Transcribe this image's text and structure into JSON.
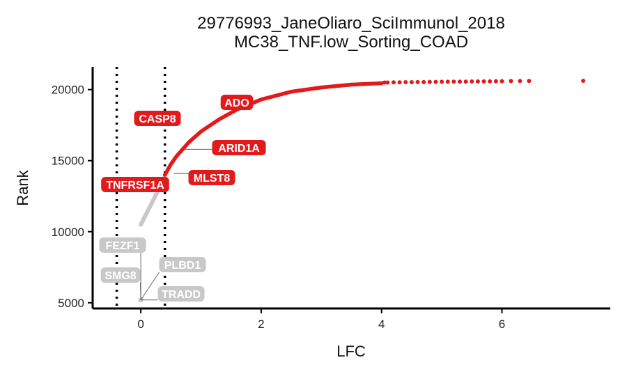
{
  "chart_data": {
    "type": "scatter",
    "title": "29776993_JaneOliaro_SciImmunol_2018",
    "subtitle": "MC38_TNF.low_Sorting_COAD",
    "xlabel": "LFC",
    "ylabel": "Rank",
    "xlim": [
      -0.8,
      7.8
    ],
    "ylim": [
      4600,
      21600
    ],
    "x_ticks": [
      0,
      2,
      4,
      6
    ],
    "y_ticks": [
      5000,
      10000,
      15000,
      20000
    ],
    "thresholds": [
      -0.4,
      0.4
    ],
    "grid": false,
    "legend": "none",
    "colors": {
      "significant": "#e31a1c",
      "not_significant": "#c8c8c8"
    },
    "grey_trend": [
      [
        0,
        10500
      ],
      [
        0.06,
        11000
      ],
      [
        0.12,
        11500
      ],
      [
        0.18,
        12000
      ],
      [
        0.24,
        12500
      ],
      [
        0.3,
        13000
      ],
      [
        0.36,
        13500
      ],
      [
        0.4,
        13900
      ]
    ],
    "red_curve": [
      [
        0.4,
        14000
      ],
      [
        0.5,
        14750
      ],
      [
        0.6,
        15350
      ],
      [
        0.8,
        16300
      ],
      [
        1.0,
        17050
      ],
      [
        1.3,
        17900
      ],
      [
        1.6,
        18600
      ],
      [
        2.0,
        19300
      ],
      [
        2.5,
        19850
      ],
      [
        3.0,
        20150
      ],
      [
        3.5,
        20350
      ],
      [
        4.0,
        20450
      ]
    ],
    "outliers": [
      [
        4.05,
        20500
      ],
      [
        4.1,
        20500
      ],
      [
        4.2,
        20510
      ],
      [
        4.3,
        20510
      ],
      [
        4.4,
        20520
      ],
      [
        4.5,
        20520
      ],
      [
        4.6,
        20530
      ],
      [
        4.7,
        20530
      ],
      [
        4.8,
        20540
      ],
      [
        4.9,
        20540
      ],
      [
        5.0,
        20550
      ],
      [
        5.1,
        20550
      ],
      [
        5.2,
        20560
      ],
      [
        5.3,
        20560
      ],
      [
        5.4,
        20560
      ],
      [
        5.5,
        20570
      ],
      [
        5.6,
        20570
      ],
      [
        5.7,
        20580
      ],
      [
        5.8,
        20580
      ],
      [
        5.9,
        20590
      ],
      [
        6.0,
        20590
      ],
      [
        6.15,
        20600
      ],
      [
        6.3,
        20600
      ],
      [
        6.45,
        20610
      ],
      [
        7.35,
        20620
      ]
    ],
    "low_point": [
      0.0,
      5200
    ],
    "labels": [
      {
        "text": "ADO",
        "x": 1.6,
        "y": 18600,
        "color": "red"
      },
      {
        "text": "CASP8",
        "x": 0.4,
        "y": 17000,
        "color": "red"
      },
      {
        "text": "ARID1A",
        "x": 0.7,
        "y": 15800,
        "color": "red"
      },
      {
        "text": "MLST8",
        "x": 0.55,
        "y": 14100,
        "color": "red"
      },
      {
        "text": "TNFRSF1A",
        "x": 0.45,
        "y": 14050,
        "color": "red"
      },
      {
        "text": "FEZF1",
        "x": 0.0,
        "y": 5200,
        "color": "grey"
      },
      {
        "text": "SMG8",
        "x": 0.0,
        "y": 5200,
        "color": "grey"
      },
      {
        "text": "PLBD1",
        "x": 0.0,
        "y": 5200,
        "color": "grey"
      },
      {
        "text": "TRADD",
        "x": 0.0,
        "y": 5200,
        "color": "grey"
      }
    ]
  }
}
